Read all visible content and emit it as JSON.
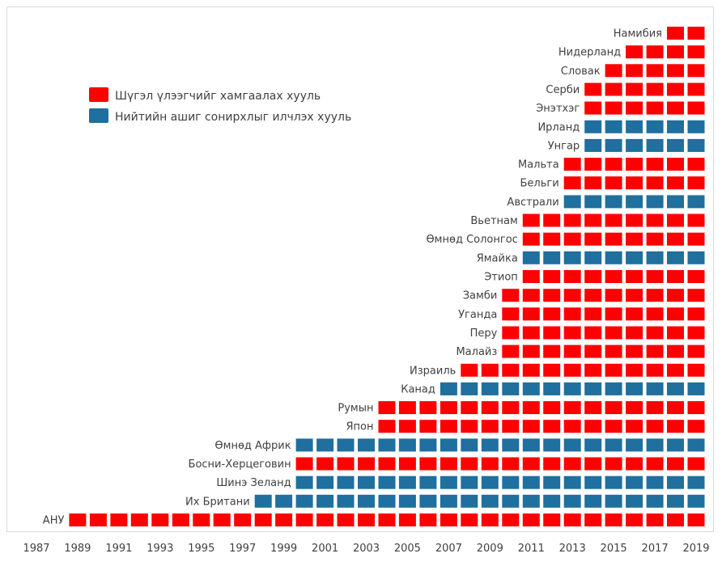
{
  "chart_data": {
    "type": "waffle-timeline",
    "x_ticks": [
      "1987",
      "1989",
      "1991",
      "1993",
      "1995",
      "1997",
      "1999",
      "2001",
      "2003",
      "2005",
      "2007",
      "2009",
      "2011",
      "2013",
      "2015",
      "2017",
      "2019"
    ],
    "x_range": [
      1987,
      2019
    ],
    "legend": [
      {
        "key": "whistleblower",
        "label": "Шүгэл үлээгчийг хамгаалах хууль",
        "color": "#ff0000"
      },
      {
        "key": "public_interest",
        "label": "Нийтийн ашиг сонирхлыг илчлэх хууль",
        "color": "#1f6f9f"
      }
    ],
    "rows": [
      {
        "country": "Намибия",
        "start": 2018,
        "type": "whistleblower"
      },
      {
        "country": "Нидерланд",
        "start": 2016,
        "type": "whistleblower"
      },
      {
        "country": "Словак",
        "start": 2015,
        "type": "whistleblower"
      },
      {
        "country": "Серби",
        "start": 2014,
        "type": "whistleblower"
      },
      {
        "country": "Энэтхэг",
        "start": 2014,
        "type": "whistleblower"
      },
      {
        "country": "Ирланд",
        "start": 2014,
        "type": "public_interest"
      },
      {
        "country": "Унгар",
        "start": 2014,
        "type": "public_interest"
      },
      {
        "country": "Мальта",
        "start": 2013,
        "type": "whistleblower"
      },
      {
        "country": "Бельги",
        "start": 2013,
        "type": "whistleblower"
      },
      {
        "country": "Австрали",
        "start": 2013,
        "type": "public_interest"
      },
      {
        "country": "Вьетнам",
        "start": 2011,
        "type": "whistleblower"
      },
      {
        "country": "Өмнөд Солонгос",
        "start": 2011,
        "type": "whistleblower"
      },
      {
        "country": "Ямайка",
        "start": 2011,
        "type": "public_interest"
      },
      {
        "country": "Этиоп",
        "start": 2011,
        "type": "whistleblower"
      },
      {
        "country": "Замби",
        "start": 2010,
        "type": "whistleblower"
      },
      {
        "country": "Уганда",
        "start": 2010,
        "type": "whistleblower"
      },
      {
        "country": "Перу",
        "start": 2010,
        "type": "whistleblower"
      },
      {
        "country": "Малайз",
        "start": 2010,
        "type": "whistleblower"
      },
      {
        "country": "Израиль",
        "start": 2008,
        "type": "whistleblower"
      },
      {
        "country": "Канад",
        "start": 2007,
        "type": "public_interest"
      },
      {
        "country": "Румын",
        "start": 2004,
        "type": "whistleblower"
      },
      {
        "country": "Япон",
        "start": 2004,
        "type": "whistleblower"
      },
      {
        "country": "Өмнөд Африк",
        "start": 2000,
        "type": "public_interest"
      },
      {
        "country": "Босни-Херцеговин",
        "start": 2000,
        "type": "whistleblower"
      },
      {
        "country": "Шинэ Зеланд",
        "start": 2000,
        "type": "public_interest"
      },
      {
        "country": "Их Британи",
        "start": 1998,
        "type": "public_interest"
      },
      {
        "country": "АНУ",
        "start": 1989,
        "type": "whistleblower"
      }
    ],
    "end_year": 2019
  }
}
